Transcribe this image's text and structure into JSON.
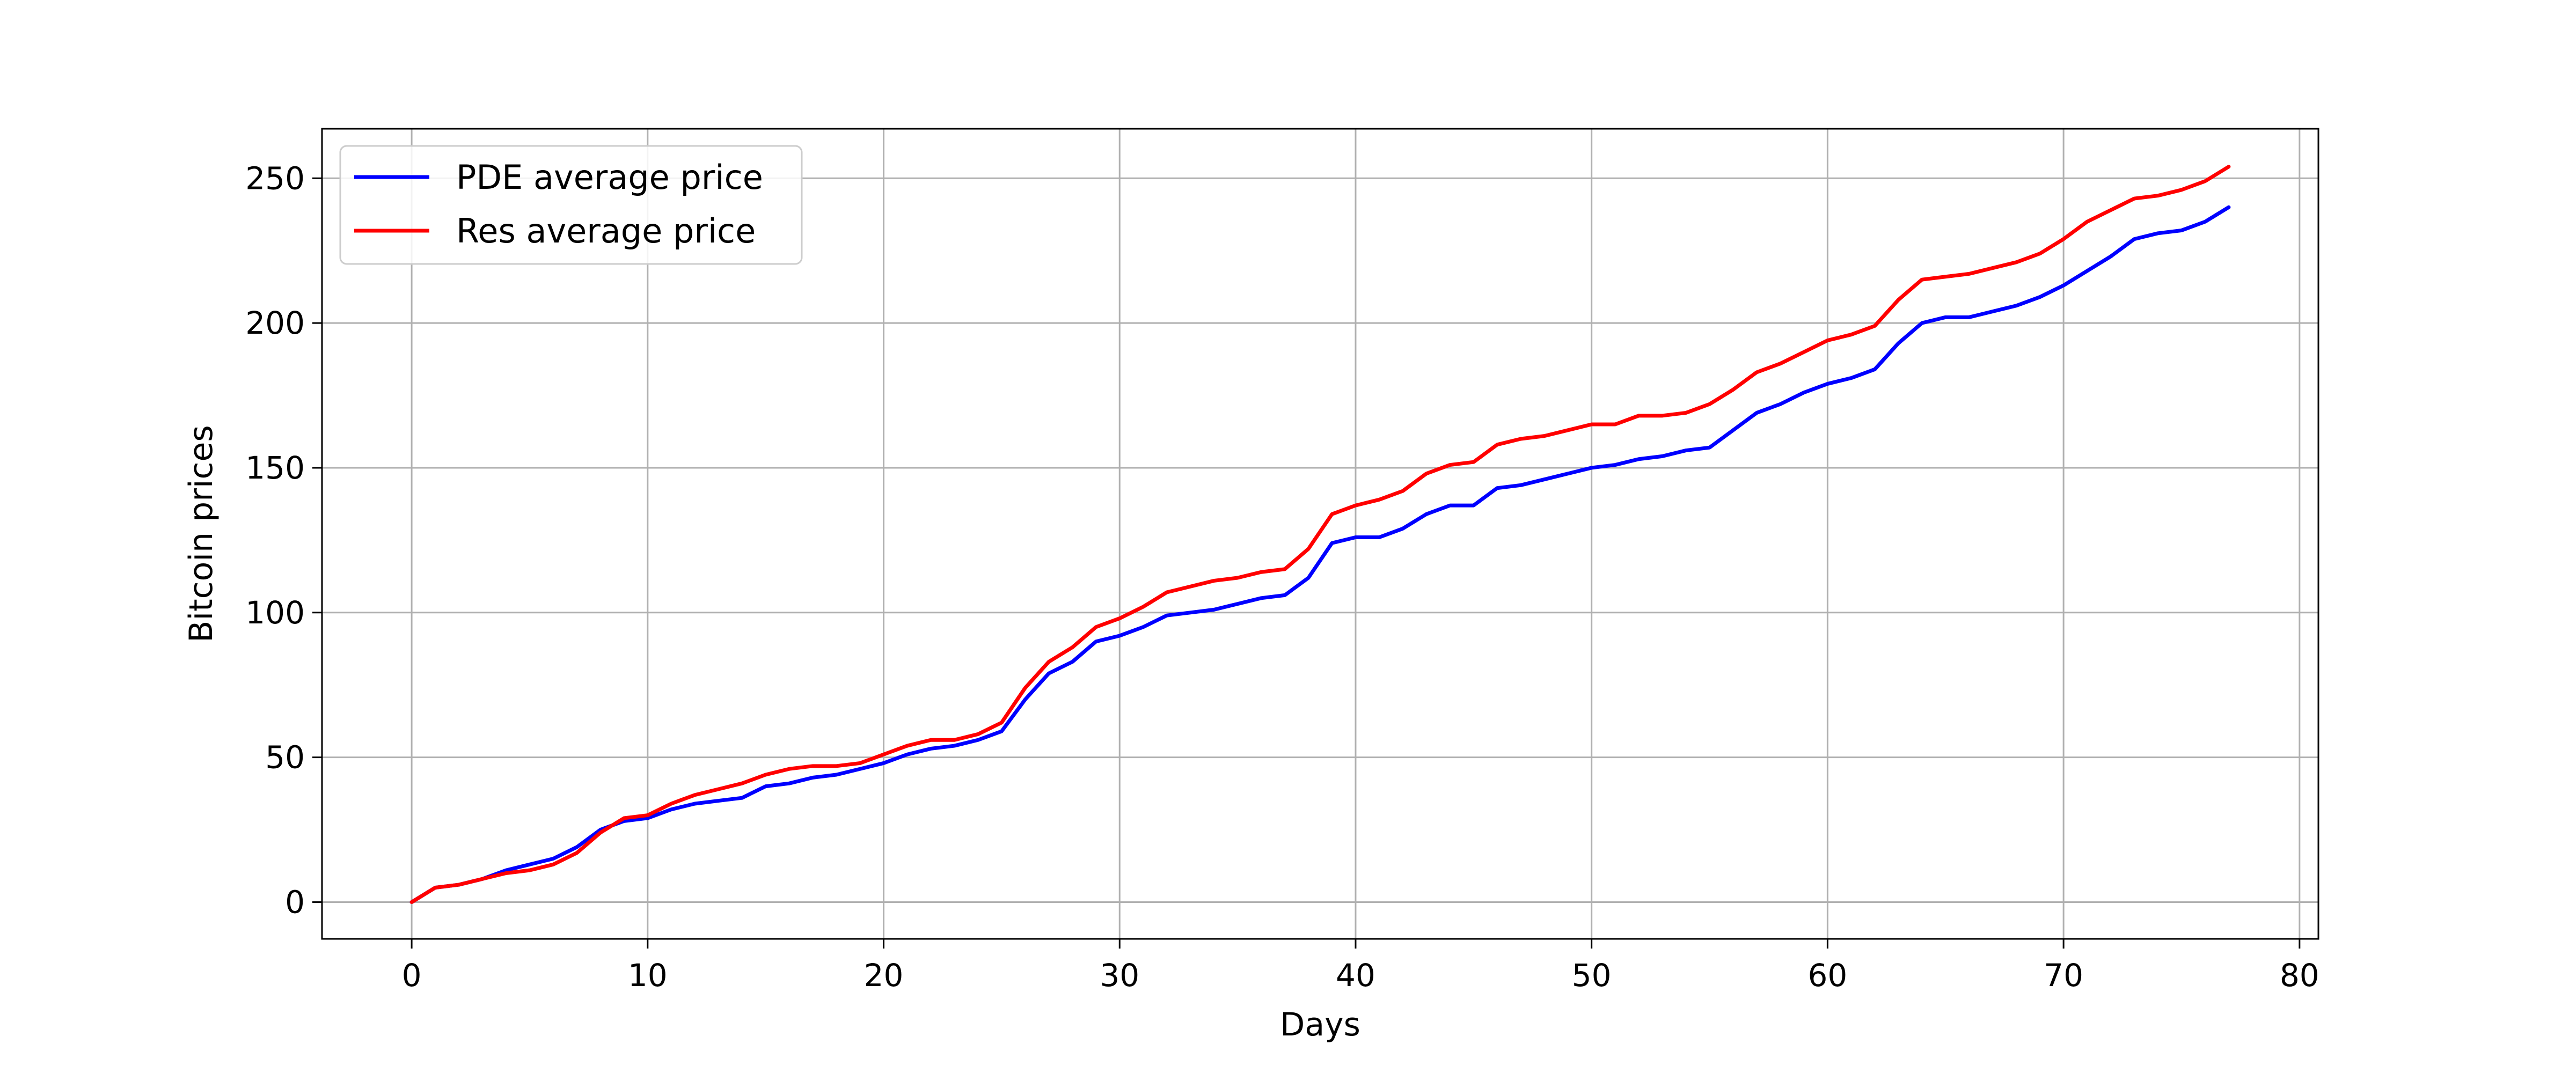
{
  "chart_data": {
    "type": "line",
    "xlabel": "Days",
    "ylabel": "Bitcoin prices",
    "xlim": [
      -3.8,
      80.8
    ],
    "ylim": [
      -12.7,
      267.1
    ],
    "xticks": [
      0,
      10,
      20,
      30,
      40,
      50,
      60,
      70,
      80
    ],
    "yticks": [
      0,
      50,
      100,
      150,
      200,
      250
    ],
    "grid": true,
    "legend_position": "top-left",
    "x": [
      0,
      1,
      2,
      3,
      4,
      5,
      6,
      7,
      8,
      9,
      10,
      11,
      12,
      13,
      14,
      15,
      16,
      17,
      18,
      19,
      20,
      21,
      22,
      23,
      24,
      25,
      26,
      27,
      28,
      29,
      30,
      31,
      32,
      33,
      34,
      35,
      36,
      37,
      38,
      39,
      40,
      41,
      42,
      43,
      44,
      45,
      46,
      47,
      48,
      49,
      50,
      51,
      52,
      53,
      54,
      55,
      56,
      57,
      58,
      59,
      60,
      61,
      62,
      63,
      64,
      65,
      66,
      67,
      68,
      69,
      70,
      71,
      72,
      73,
      74,
      75,
      76,
      77
    ],
    "series": [
      {
        "name": "PDE average price",
        "color": "#0000ff",
        "values": [
          0,
          5,
          6,
          8,
          11,
          13,
          15,
          19,
          25,
          28,
          29,
          32,
          34,
          35,
          36,
          40,
          41,
          43,
          44,
          46,
          48,
          51,
          53,
          54,
          56,
          59,
          70,
          79,
          83,
          90,
          92,
          95,
          99,
          100,
          101,
          103,
          105,
          106,
          112,
          124,
          126,
          126,
          129,
          134,
          137,
          137,
          143,
          144,
          146,
          148,
          150,
          151,
          153,
          154,
          156,
          157,
          163,
          169,
          172,
          176,
          179,
          181,
          184,
          193,
          200,
          202,
          202,
          204,
          206,
          209,
          213,
          218,
          223,
          229,
          231,
          232,
          235,
          240
        ]
      },
      {
        "name": "Res average price",
        "color": "#ff0000",
        "values": [
          0,
          5,
          6,
          8,
          10,
          11,
          13,
          17,
          24,
          29,
          30,
          34,
          37,
          39,
          41,
          44,
          46,
          47,
          47,
          48,
          51,
          54,
          56,
          56,
          58,
          62,
          74,
          83,
          88,
          95,
          98,
          102,
          107,
          109,
          111,
          112,
          114,
          115,
          122,
          134,
          137,
          139,
          142,
          148,
          151,
          152,
          158,
          160,
          161,
          163,
          165,
          165,
          168,
          168,
          169,
          172,
          177,
          183,
          186,
          190,
          194,
          196,
          199,
          208,
          215,
          216,
          217,
          219,
          221,
          224,
          229,
          235,
          239,
          243,
          244,
          246,
          249,
          254
        ]
      }
    ]
  }
}
